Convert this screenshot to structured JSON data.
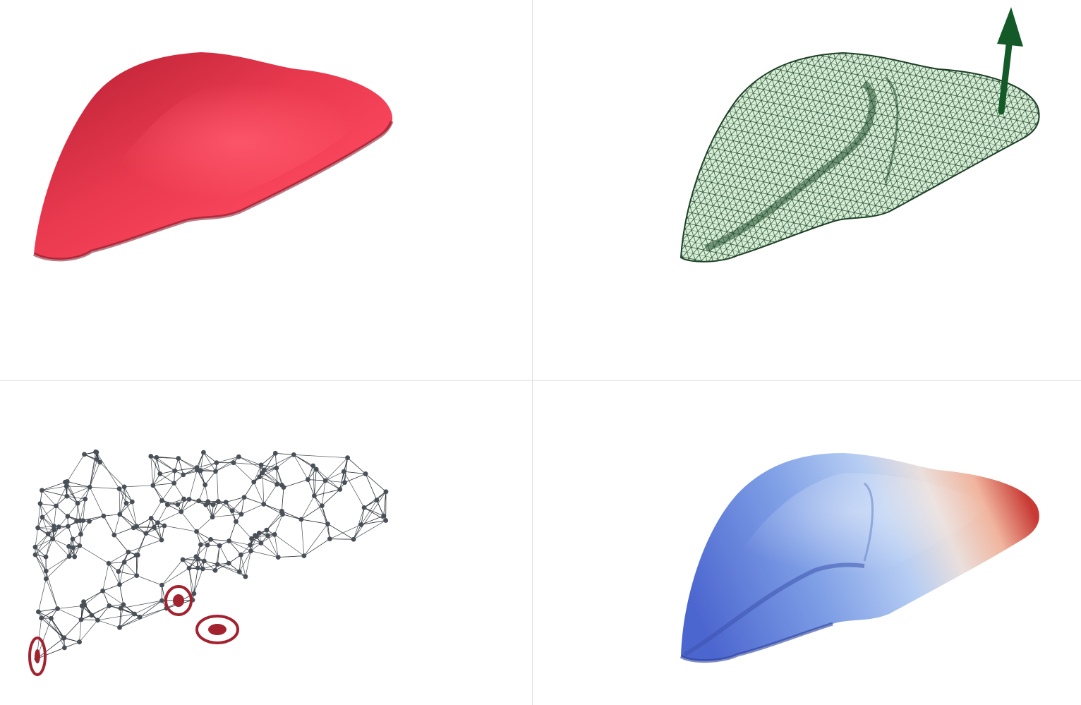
{
  "panes": [
    {
      "id": "solid",
      "style": "solid-shaded",
      "color": "#e8394f"
    },
    {
      "id": "wireframe",
      "style": "wireframe-with-vector",
      "color": "#1f6b33",
      "fill": "#d7f0d7"
    },
    {
      "id": "network",
      "style": "node-graph-with-highlights",
      "node_color": "#4a5058",
      "highlight_color": "#a3222f"
    },
    {
      "id": "scalar-field",
      "style": "diverging-colormap",
      "colors": [
        "#4d6ad3",
        "#aec8f2",
        "#f2d6cc",
        "#c83a34"
      ]
    }
  ],
  "divider_color": "#e1e1e1",
  "icons": {
    "vector_arrow": "arrow-up-icon",
    "highlight_marker": "target-ring-icon"
  }
}
